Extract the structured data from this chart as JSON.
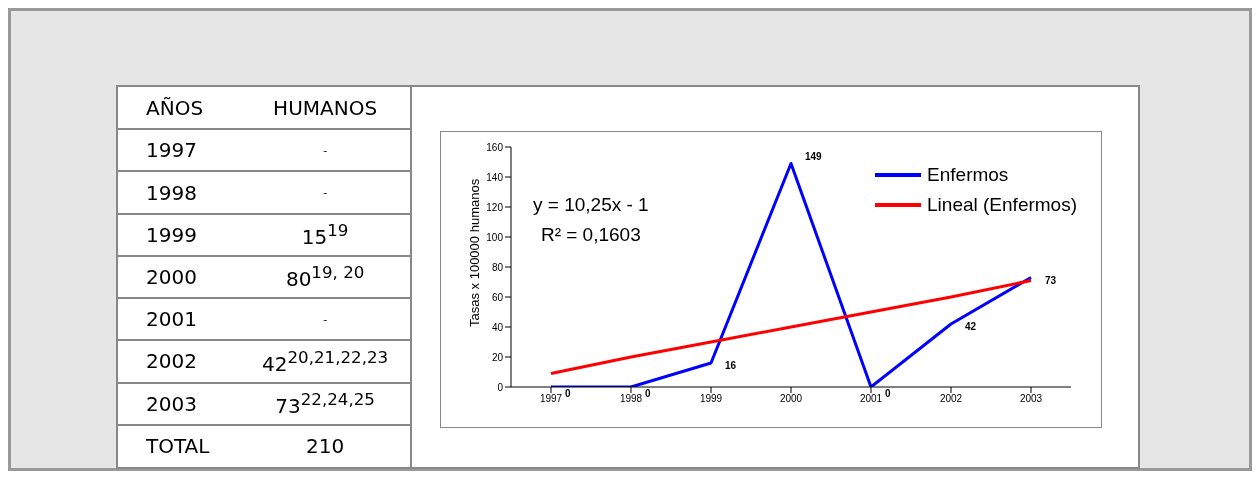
{
  "chart_data": {
    "type": "line",
    "categories": [
      "1997",
      "1998",
      "1999",
      "2000",
      "2001",
      "2002",
      "2003"
    ],
    "series": [
      {
        "name": "Enfermos",
        "color": "#0000ff",
        "values": [
          0,
          0,
          16,
          149,
          0,
          42,
          73
        ],
        "value_labels": [
          "0",
          "0",
          "16",
          "149",
          "0",
          "42",
          "73"
        ]
      },
      {
        "name": "Lineal (Enfermos)",
        "color": "#ff0000",
        "values": [
          9,
          20,
          30,
          40,
          50,
          60,
          71
        ]
      }
    ],
    "ylabel": "Tasas x 100000 humanos",
    "ylim": [
      0,
      160
    ],
    "yticks": [
      0,
      20,
      40,
      60,
      80,
      100,
      120,
      140,
      160
    ],
    "legend": "top right",
    "marker": "none",
    "line_style": "solid",
    "annotations": [
      "AÑOS",
      "HUMANOS",
      "1997",
      "-",
      "1998",
      "-",
      "1999",
      "15$^{19}$",
      "2000",
      "80$^{19, 20}$",
      "2001",
      "-",
      "2002",
      "42$^{20,21,22,23}$",
      "2003",
      "73$^{22,24,25}$",
      "TOTAL",
      "210",
      "y = 10,25x - 1",
      "R² = 0,1603"
    ]
  }
}
